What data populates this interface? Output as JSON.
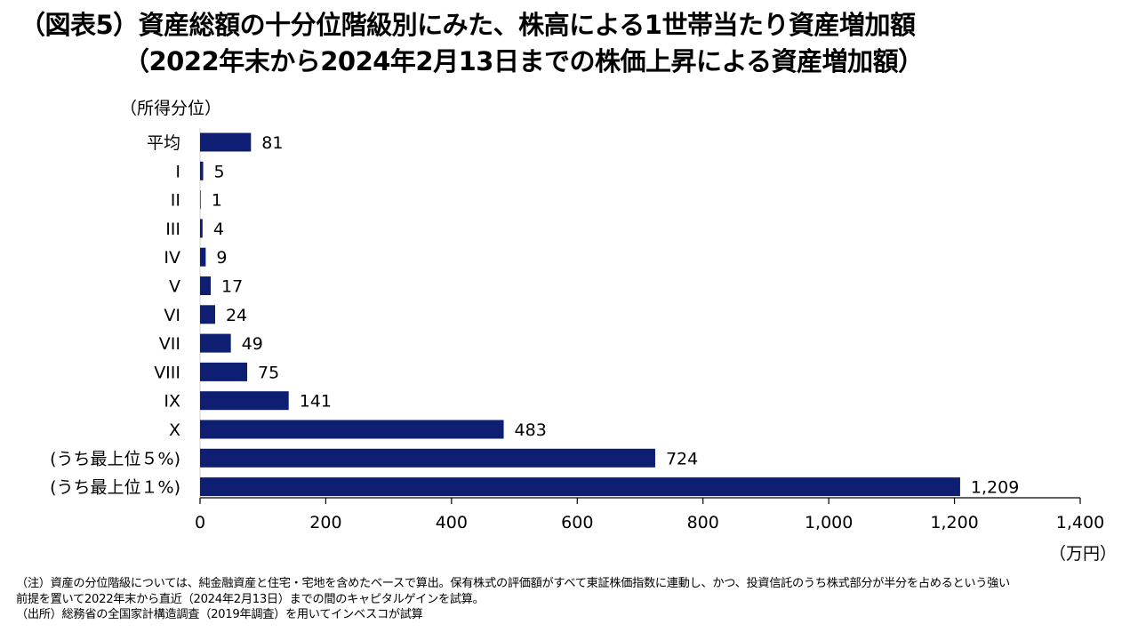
{
  "title": {
    "line1": "（図表5）資産総額の十分位階級別にみた、株高による1世帯当たり資産増加額",
    "line2": "（2022年末から2024年2月13日までの株価上昇による資産増加額）"
  },
  "colors": {
    "bar": "#0e1f73",
    "axis": "#000000",
    "text": "#000000"
  },
  "chart_data": {
    "type": "bar",
    "orientation": "horizontal",
    "ylabel": "（所得分位）",
    "xlabel": "（万円）",
    "categories": [
      "平均",
      "I",
      "II",
      "III",
      "IV",
      "V",
      "VI",
      "VII",
      "VIII",
      "IX",
      "X",
      "(うち最上位５%)",
      "(うち最上位１%)"
    ],
    "values": [
      81,
      5,
      1,
      4,
      9,
      17,
      24,
      49,
      75,
      141,
      483,
      724,
      1209
    ],
    "value_labels": [
      "81",
      "5",
      "1",
      "4",
      "9",
      "17",
      "24",
      "49",
      "75",
      "141",
      "483",
      "724",
      "1,209"
    ],
    "xlim": [
      0,
      1400
    ],
    "xticks": [
      0,
      200,
      400,
      600,
      800,
      1000,
      1200,
      1400
    ],
    "xtick_labels": [
      "0",
      "200",
      "400",
      "600",
      "800",
      "1,000",
      "1,200",
      "1,400"
    ],
    "grid": false,
    "legend": "none"
  },
  "notes": {
    "line1": "（注）資産の分位階級については、純金融資産と住宅・宅地を含めたベースで算出。保有株式の評価額がすべて東証株価指数に連動し、かつ、投資信託のうち株式部分が半分を占めるという強い",
    "line2": "前提を置いて2022年末から直近（2024年2月13日）までの間のキャピタルゲインを試算。",
    "line3": "（出所）総務省の全国家計構造調査（2019年調査）を用いてインベスコが試算"
  }
}
